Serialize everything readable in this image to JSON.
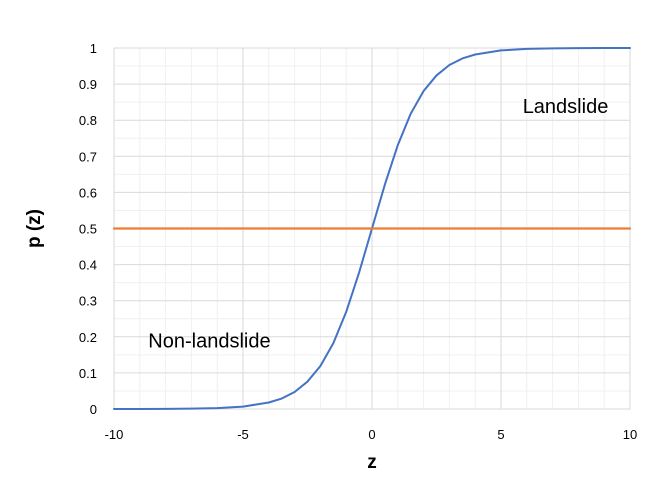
{
  "chart_data": {
    "type": "line",
    "title": "",
    "xlabel": "z",
    "ylabel": "p (z)",
    "xlim": [
      -10,
      10
    ],
    "ylim": [
      0,
      1
    ],
    "x_ticks": [
      -10,
      -5,
      0,
      5,
      10
    ],
    "y_ticks": [
      0,
      0.1,
      0.2,
      0.3,
      0.4,
      0.5,
      0.6,
      0.7,
      0.8,
      0.9,
      1
    ],
    "grid": true,
    "legend": "none",
    "series": [
      {
        "color": "#4472C4",
        "x": [
          -10,
          -9,
          -8,
          -7,
          -6,
          -5,
          -4,
          -3.5,
          -3,
          -2.5,
          -2,
          -1.5,
          -1,
          -0.5,
          0,
          0.5,
          1,
          1.5,
          2,
          2.5,
          3,
          3.5,
          4,
          5,
          6,
          7,
          8,
          9,
          10
        ],
        "y": [
          5e-05,
          0.0001,
          0.0003,
          0.0009,
          0.0025,
          0.0067,
          0.018,
          0.029,
          0.047,
          0.076,
          0.119,
          0.182,
          0.269,
          0.378,
          0.5,
          0.622,
          0.731,
          0.818,
          0.881,
          0.924,
          0.953,
          0.971,
          0.982,
          0.9933,
          0.9975,
          0.9991,
          0.9997,
          0.9999,
          1.0
        ]
      },
      {
        "color": "#ED7D31",
        "x": [
          -10,
          10
        ],
        "y": [
          0.5,
          0.5
        ]
      }
    ],
    "annotations": [
      {
        "text": "Landslide",
        "x": 7.5,
        "y": 0.84
      },
      {
        "text": "Non-landslide",
        "x": -6.3,
        "y": 0.19
      }
    ]
  }
}
